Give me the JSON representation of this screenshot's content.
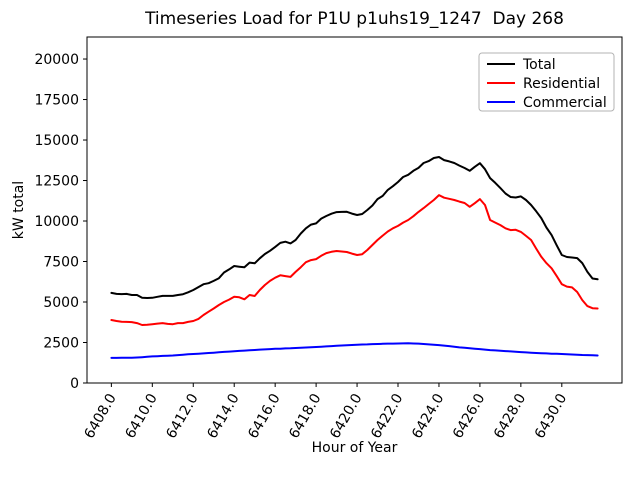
{
  "title": "Timeseries Load for P1U p1uhs19_1247  Day 268",
  "chart_data": {
    "type": "line",
    "title": "Timeseries Load for P1U p1uhs19_1247  Day 268",
    "xlabel": "Hour of Year",
    "ylabel": "kW total",
    "grid": false,
    "legend_position": "upper right",
    "xlim": [
      6406.81,
      6432.94
    ],
    "ylim": [
      0,
      21360
    ],
    "xticks": [
      6408,
      6410,
      6412,
      6414,
      6416,
      6418,
      6420,
      6422,
      6424,
      6426,
      6428,
      6430
    ],
    "xtick_labels": [
      "6408.0",
      "6410.0",
      "6412.0",
      "6414.0",
      "6416.0",
      "6418.0",
      "6420.0",
      "6422.0",
      "6424.0",
      "6426.0",
      "6428.0",
      "6430.0"
    ],
    "yticks": [
      0,
      2500,
      5000,
      7500,
      10000,
      12500,
      15000,
      17500,
      20000
    ],
    "ytick_labels": [
      "0",
      "2500",
      "5000",
      "7500",
      "10000",
      "12500",
      "15000",
      "17500",
      "20000"
    ],
    "x": [
      6408.0,
      6408.25,
      6408.5,
      6408.75,
      6409.0,
      6409.25,
      6409.5,
      6409.75,
      6410.0,
      6410.25,
      6410.5,
      6410.75,
      6411.0,
      6411.25,
      6411.5,
      6411.75,
      6412.0,
      6412.25,
      6412.5,
      6412.75,
      6413.0,
      6413.25,
      6413.5,
      6413.75,
      6414.0,
      6414.25,
      6414.5,
      6414.75,
      6415.0,
      6415.25,
      6415.5,
      6415.75,
      6416.0,
      6416.25,
      6416.5,
      6416.75,
      6417.0,
      6417.25,
      6417.5,
      6417.75,
      6418.0,
      6418.25,
      6418.5,
      6418.75,
      6419.0,
      6419.25,
      6419.5,
      6419.75,
      6420.0,
      6420.25,
      6420.5,
      6420.75,
      6421.0,
      6421.25,
      6421.5,
      6421.75,
      6422.0,
      6422.25,
      6422.5,
      6422.75,
      6423.0,
      6423.25,
      6423.5,
      6423.75,
      6424.0,
      6424.25,
      6424.5,
      6424.75,
      6425.0,
      6425.25,
      6425.5,
      6425.75,
      6426.0,
      6426.25,
      6426.5,
      6426.75,
      6427.0,
      6427.25,
      6427.5,
      6427.75,
      6428.0,
      6428.25,
      6428.5,
      6428.75,
      6429.0,
      6429.25,
      6429.5,
      6429.75,
      6430.0,
      6430.25,
      6430.5,
      6430.75,
      6431.0,
      6431.25,
      6431.5,
      6431.75
    ],
    "series": [
      {
        "name": "Total",
        "color": "#000000",
        "values": [
          5560,
          5500,
          5490,
          5500,
          5430,
          5430,
          5260,
          5250,
          5260,
          5320,
          5380,
          5380,
          5380,
          5430,
          5480,
          5600,
          5740,
          5920,
          6100,
          6160,
          6300,
          6470,
          6820,
          7010,
          7220,
          7180,
          7140,
          7430,
          7390,
          7700,
          7965,
          8160,
          8400,
          8650,
          8725,
          8620,
          8830,
          9230,
          9550,
          9780,
          9850,
          10150,
          10310,
          10450,
          10550,
          10560,
          10570,
          10460,
          10370,
          10430,
          10680,
          10960,
          11350,
          11550,
          11920,
          12150,
          12410,
          12720,
          12850,
          13100,
          13280,
          13580,
          13700,
          13890,
          13950,
          13760,
          13680,
          13580,
          13420,
          13270,
          13100,
          13350,
          13570,
          13200,
          12650,
          12350,
          12030,
          11700,
          11480,
          11450,
          11520,
          11300,
          10990,
          10600,
          10180,
          9600,
          9130,
          8500,
          7900,
          7780,
          7750,
          7710,
          7400,
          6860,
          6450,
          6400
        ]
      },
      {
        "name": "Residential",
        "color": "#ff0000",
        "values": [
          3890,
          3830,
          3780,
          3770,
          3760,
          3700,
          3580,
          3600,
          3630,
          3670,
          3700,
          3650,
          3630,
          3700,
          3700,
          3770,
          3830,
          3960,
          4200,
          4400,
          4600,
          4815,
          5000,
          5150,
          5330,
          5290,
          5165,
          5430,
          5370,
          5740,
          6050,
          6300,
          6500,
          6650,
          6600,
          6550,
          6860,
          7150,
          7460,
          7590,
          7650,
          7850,
          8020,
          8100,
          8150,
          8120,
          8090,
          7990,
          7900,
          7950,
          8210,
          8520,
          8830,
          9100,
          9350,
          9550,
          9700,
          9900,
          10060,
          10300,
          10560,
          10800,
          11050,
          11300,
          11600,
          11440,
          11370,
          11300,
          11200,
          11110,
          10880,
          11100,
          11350,
          10990,
          10060,
          9900,
          9750,
          9550,
          9440,
          9460,
          9330,
          9080,
          8830,
          8300,
          7790,
          7400,
          7080,
          6600,
          6100,
          5950,
          5900,
          5620,
          5120,
          4750,
          4620,
          4600
        ]
      },
      {
        "name": "Commercial",
        "color": "#0000ff",
        "values": [
          1550,
          1550,
          1555,
          1555,
          1560,
          1575,
          1590,
          1615,
          1640,
          1655,
          1670,
          1685,
          1700,
          1720,
          1745,
          1770,
          1790,
          1810,
          1830,
          1850,
          1870,
          1895,
          1920,
          1940,
          1960,
          1980,
          2000,
          2020,
          2040,
          2060,
          2075,
          2090,
          2110,
          2120,
          2135,
          2145,
          2160,
          2175,
          2190,
          2205,
          2220,
          2240,
          2260,
          2280,
          2300,
          2315,
          2330,
          2345,
          2360,
          2375,
          2385,
          2400,
          2410,
          2420,
          2430,
          2435,
          2440,
          2445,
          2450,
          2440,
          2430,
          2405,
          2380,
          2360,
          2340,
          2310,
          2280,
          2240,
          2200,
          2175,
          2150,
          2120,
          2090,
          2060,
          2030,
          2010,
          1990,
          1970,
          1950,
          1930,
          1910,
          1890,
          1870,
          1855,
          1840,
          1825,
          1810,
          1800,
          1790,
          1775,
          1760,
          1745,
          1730,
          1720,
          1710,
          1700
        ]
      }
    ],
    "legend": {
      "entries": [
        {
          "label": "Total",
          "color": "#000000"
        },
        {
          "label": "Residential",
          "color": "#ff0000"
        },
        {
          "label": "Commercial",
          "color": "#0000ff"
        }
      ]
    }
  }
}
